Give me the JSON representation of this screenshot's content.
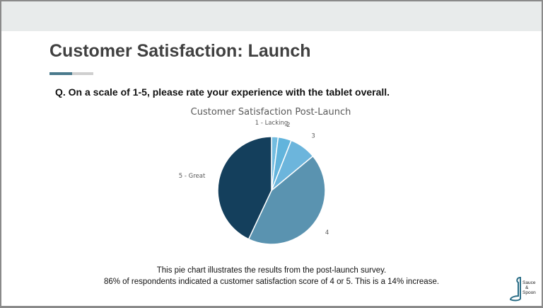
{
  "slide": {
    "title": "Customer Satisfaction: Launch",
    "question": "Q. On a scale of 1-5, please rate your experience with the tablet overall.",
    "caption_line1": "This pie chart illustrates the results from the post-launch survey.",
    "caption_line2": "86% of respondents indicated a customer satisfaction score of 4 or 5. This is a 14% increase.",
    "logo": {
      "line1": "Sauce",
      "line2": "&",
      "line3": "Spoon",
      "icon": "spoon-icon"
    }
  },
  "colors": {
    "accent_dark": "#4a7a8c",
    "accent_light": "#cfcfcf",
    "slices": [
      "#74bde0",
      "#62b4dc",
      "#6cb5dc",
      "#5a93b0",
      "#143f5c"
    ],
    "logo": "#2a6d86"
  },
  "chart_data": {
    "type": "pie",
    "title": "Customer Satisfaction Post-Launch",
    "categories": [
      "1 - Lacking",
      "2",
      "3",
      "4",
      "5 - Great"
    ],
    "values": [
      2,
      4,
      8,
      43,
      43
    ],
    "unit": "%",
    "start": "top, clockwise"
  }
}
